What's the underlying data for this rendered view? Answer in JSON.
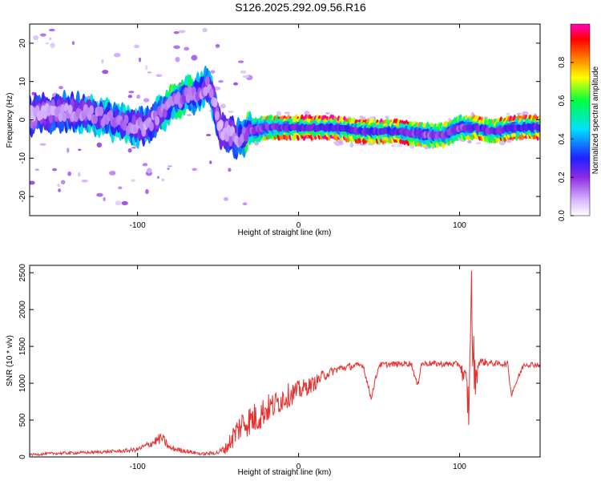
{
  "title": "S126.2025.292.09.56.R16",
  "chart_data": [
    {
      "type": "heatmap",
      "xlabel": "Height of straight line (km)",
      "ylabel": "Frequency (Hz)",
      "xlim": [
        -167,
        150
      ],
      "ylim": [
        -25,
        25
      ],
      "x_ticks": [
        -100,
        0,
        100
      ],
      "y_ticks": [
        -20,
        -10,
        0,
        10,
        20
      ],
      "colorbar": {
        "label": "Normalized spectral amplitude",
        "range": [
          0.0,
          1.0
        ],
        "ticks": [
          "0.0",
          "0.2",
          "0.4",
          "0.6",
          "0.8"
        ],
        "colors": [
          "#ffffff",
          "#d8b8ff",
          "#8a2be2",
          "#2020ff",
          "#00e0ff",
          "#00ff40",
          "#ffff00",
          "#ff8000",
          "#ff0000",
          "#ff00c0"
        ]
      },
      "ridge": {
        "x": [
          -167,
          -150,
          -130,
          -110,
          -95,
          -85,
          -75,
          -65,
          -55,
          -48,
          -42,
          -38,
          -30,
          -20,
          -10,
          0,
          20,
          40,
          60,
          80,
          90,
          100,
          110,
          120,
          135,
          150
        ],
        "freq": [
          1,
          2,
          2,
          -1,
          -2,
          2,
          5,
          7,
          9,
          -3,
          -4,
          -5,
          -3,
          -2,
          -2,
          -2,
          -2,
          -3,
          -3,
          -4,
          -4,
          -2,
          -2,
          -3,
          -2,
          -2
        ],
        "amplitude": [
          0.25,
          0.35,
          0.4,
          0.45,
          0.35,
          0.45,
          0.55,
          0.5,
          0.4,
          0.25,
          0.3,
          0.4,
          0.55,
          0.7,
          0.8,
          0.85,
          0.9,
          0.8,
          0.85,
          0.6,
          0.7,
          0.55,
          0.85,
          0.75,
          0.8,
          0.85
        ]
      }
    },
    {
      "type": "line",
      "xlabel": "Height of straight line (km)",
      "ylabel": "SNR (10 * v/v)",
      "xlim": [
        -167,
        150
      ],
      "ylim": [
        0,
        2600
      ],
      "x_ticks": [
        -100,
        0,
        100
      ],
      "y_ticks": [
        0,
        500,
        1000,
        1500,
        2000,
        2500
      ],
      "color": "#e8302f",
      "series": [
        {
          "x": [
            -167,
            -150,
            -130,
            -110,
            -100,
            -90,
            -85,
            -80,
            -70,
            -60,
            -50,
            -45,
            -40,
            -35,
            -30,
            -25,
            -20,
            -15,
            -10,
            -5,
            0,
            5,
            10,
            15,
            20,
            25,
            30,
            40,
            45,
            50,
            60,
            70,
            74,
            76,
            80,
            90,
            100,
            104,
            106,
            107,
            108,
            110,
            112,
            120,
            130,
            132,
            140,
            150
          ],
          "y": [
            30,
            50,
            60,
            80,
            100,
            200,
            260,
            120,
            80,
            40,
            60,
            120,
            300,
            450,
            500,
            550,
            650,
            700,
            800,
            850,
            900,
            950,
            1000,
            1100,
            1150,
            1200,
            1220,
            1250,
            800,
            1250,
            1260,
            1270,
            950,
            1260,
            1270,
            1260,
            1260,
            1000,
            600,
            2500,
            1500,
            1000,
            1300,
            1270,
            1260,
            850,
            1260,
            1250
          ],
          "noise": [
            15,
            20,
            20,
            25,
            30,
            60,
            80,
            40,
            30,
            20,
            30,
            80,
            180,
            200,
            220,
            220,
            200,
            180,
            180,
            160,
            140,
            120,
            100,
            80,
            60,
            50,
            50,
            40,
            40,
            40,
            40,
            40,
            40,
            40,
            40,
            40,
            40,
            200,
            400,
            600,
            500,
            200,
            60,
            40,
            40,
            40,
            40,
            40
          ]
        }
      ]
    }
  ]
}
